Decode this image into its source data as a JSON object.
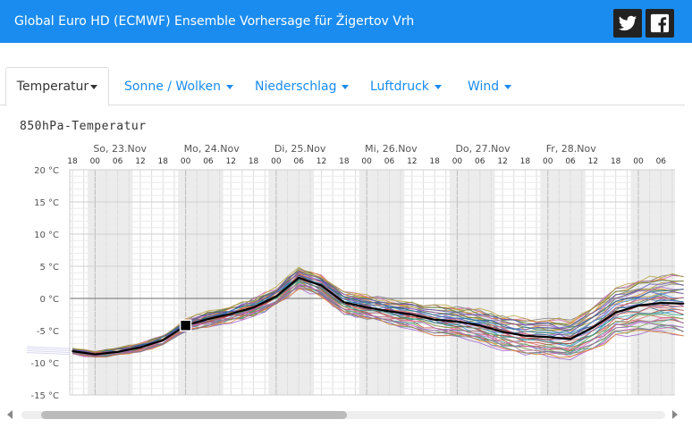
{
  "header": {
    "title": "Global Euro HD (ECMWF) Ensemble Vorhersage für Žigertov Vrh",
    "background": "#1a8cf0",
    "social": [
      {
        "name": "twitter-icon"
      },
      {
        "name": "facebook-icon"
      }
    ]
  },
  "tabs": [
    {
      "label": "Temperatur",
      "active": true
    },
    {
      "label": "Sonne / Wolken",
      "active": false
    },
    {
      "label": "Niederschlag",
      "active": false
    },
    {
      "label": "Luftdruck",
      "active": false
    },
    {
      "label": "Wind",
      "active": false
    }
  ],
  "chart_title": "850hPa-Temperatur",
  "chart_data": {
    "type": "line",
    "title": "850hPa-Temperatur",
    "y_unit": "°C",
    "ylim": [
      -15,
      20
    ],
    "y_ticks": [
      "20 °C",
      "15 °C",
      "10 °C",
      "5 °C",
      "0 °C",
      "-5 °C",
      "-10 °C",
      "-15 °C"
    ],
    "day_labels": [
      "So, 23.Nov",
      "Mo, 24.Nov",
      "Di, 25.Nov",
      "Mi, 26.Nov",
      "Do, 27.Nov",
      "Fr, 28.Nov"
    ],
    "hour_labels": [
      "00",
      "06",
      "12",
      "18",
      "00",
      "06",
      "12",
      "18",
      "00",
      "06",
      "12",
      "18",
      "00",
      "06",
      "12",
      "18",
      "00",
      "06",
      "12",
      "18",
      "00",
      "06",
      "12",
      "18",
      "00",
      "06"
    ],
    "grid": true,
    "x_unit": "hours from Sa, 22.Nov 18:00",
    "x_range": [
      0,
      162
    ],
    "mean_series": {
      "x": [
        0,
        6,
        12,
        18,
        24,
        30,
        36,
        42,
        48,
        54,
        60,
        66,
        72,
        78,
        84,
        90,
        96,
        102,
        108,
        114,
        120,
        126,
        132,
        138,
        144,
        150,
        156,
        162
      ],
      "values": [
        -8.2,
        -8.7,
        -8.3,
        -7.6,
        -6.5,
        -4.2,
        -3.2,
        -2.4,
        -1.4,
        0.3,
        3.2,
        2.0,
        -0.6,
        -1.4,
        -2.0,
        -2.5,
        -3.3,
        -3.6,
        -4.2,
        -5.2,
        -5.8,
        -6.0,
        -6.3,
        -4.5,
        -2.2,
        -1.1,
        -0.7,
        -0.8
      ]
    },
    "marker": {
      "x": 30,
      "y": -4.2
    },
    "colors": {
      "mean": "#000000",
      "grid": "#dddddd",
      "night": "#ececec",
      "zero_line": "#888888",
      "members": [
        "#e0821e",
        "#4a7a3a",
        "#9b59b6",
        "#3a8fd8",
        "#c0392b",
        "#2ca08a",
        "#d45fa8",
        "#7a7a7a",
        "#b8a03a",
        "#5a4ac0",
        "#1f6e8c",
        "#e06060",
        "#70a040",
        "#a060d0"
      ]
    }
  },
  "scrollbar": {
    "name": "chart-scrollbar"
  }
}
